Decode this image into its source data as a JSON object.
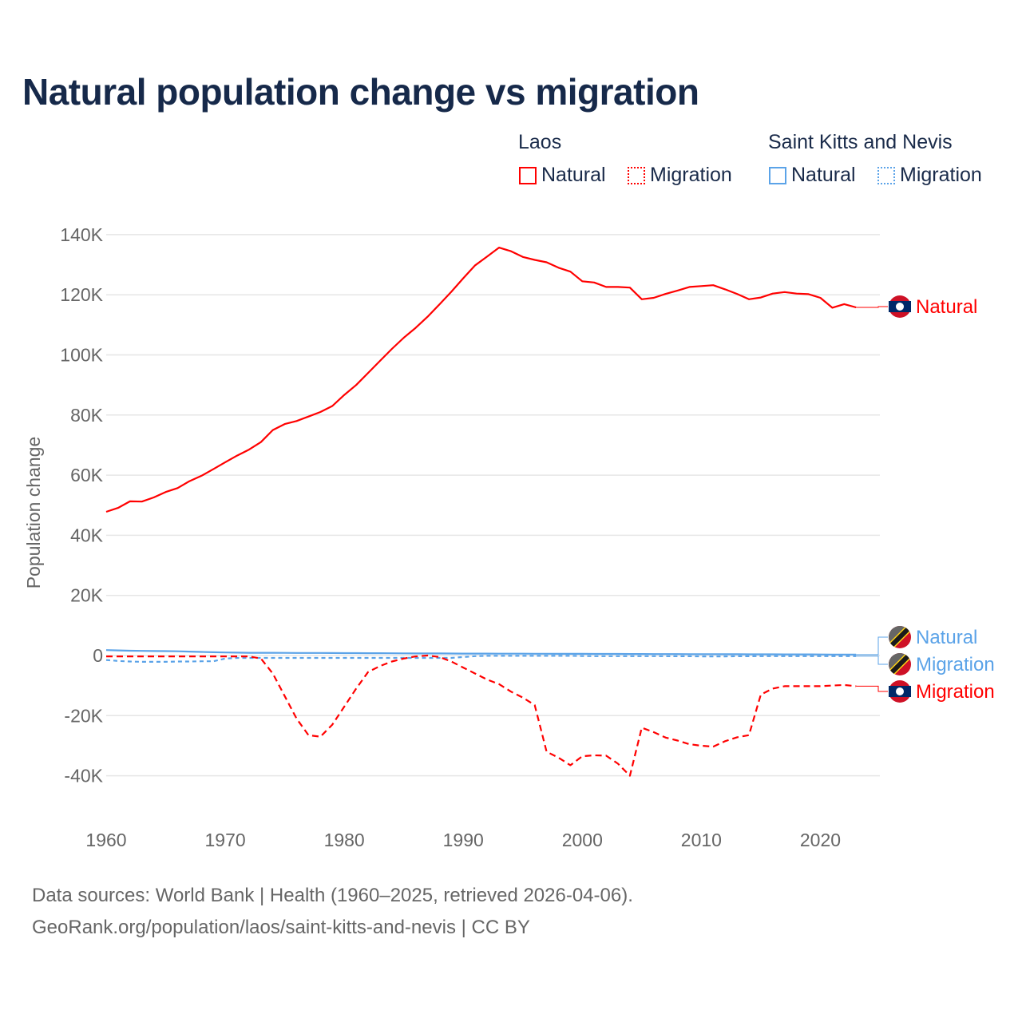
{
  "title": "Natural population change vs migration",
  "legend": {
    "groups": [
      {
        "name": "Laos",
        "color": "#ff0000",
        "items": [
          "Natural",
          "Migration"
        ]
      },
      {
        "name": "Saint Kitts and Nevis",
        "color": "#5ba3e8",
        "items": [
          "Natural",
          "Migration"
        ]
      }
    ]
  },
  "footer": {
    "line1": "Data sources: World Bank | Health (1960–2025, retrieved 2026-04-06).",
    "line2": "GeoRank.org/population/laos/saint-kitts-and-nevis | CC BY"
  },
  "chart_data": {
    "type": "line",
    "title": "Natural population change vs migration",
    "xlabel": "",
    "ylabel": "Population change",
    "xlim": [
      1960,
      2025
    ],
    "ylim": [
      -50000,
      140000
    ],
    "x_ticks": [
      "1960",
      "1970",
      "1980",
      "1990",
      "2000",
      "2010",
      "2020"
    ],
    "y_ticks": [
      "140K",
      "120K",
      "100K",
      "80K",
      "60K",
      "40K",
      "20K",
      "0",
      "-20K",
      "-40K"
    ],
    "grid": true,
    "x_start": 1960,
    "series": [
      {
        "name": "Laos Natural",
        "label": "Natural",
        "color": "#ff0000",
        "dash": "solid",
        "values": [
          47800,
          49100,
          51300,
          51200,
          52600,
          54400,
          55700,
          58000,
          59800,
          62000,
          64300,
          66500,
          68500,
          71000,
          75000,
          77000,
          78000,
          79500,
          81000,
          83000,
          86700,
          90000,
          94000,
          98000,
          102000,
          105700,
          109000,
          112700,
          116800,
          121000,
          125500,
          129800,
          132700,
          135700,
          134500,
          132600,
          131600,
          130800,
          129000,
          127700,
          124500,
          124100,
          122600,
          122600,
          122400,
          118500,
          119000,
          120300,
          121400,
          122600,
          122900,
          123200,
          121800,
          120300,
          118500,
          119100,
          120400,
          120900,
          120400,
          120200,
          119000,
          115700,
          116900,
          115800
        ]
      },
      {
        "name": "Laos Migration",
        "label": "Migration",
        "color": "#ff0000",
        "dash": "dashed",
        "values": [
          -300,
          -300,
          -300,
          -300,
          -300,
          -300,
          -300,
          -300,
          -300,
          -300,
          -300,
          -300,
          -300,
          -1000,
          -6000,
          -13500,
          -21000,
          -26500,
          -27000,
          -23000,
          -17000,
          -11000,
          -5500,
          -3500,
          -2000,
          -1000,
          -300,
          0,
          -500,
          -2000,
          -4000,
          -6000,
          -8000,
          -9500,
          -12000,
          -14000,
          -16500,
          -32000,
          -34000,
          -36500,
          -33500,
          -33200,
          -33300,
          -36000,
          -40000,
          -24000,
          -25500,
          -27300,
          -28300,
          -29500,
          -30000,
          -30300,
          -28500,
          -27200,
          -26500,
          -13000,
          -11000,
          -10200,
          -10200,
          -10200,
          -10200,
          -10000,
          -9800,
          -10200
        ]
      },
      {
        "name": "Saint Kitts and Nevis Natural",
        "label": "Natural",
        "color": "#5ba3e8",
        "dash": "solid",
        "values": [
          1800,
          1700,
          1600,
          1550,
          1500,
          1450,
          1400,
          1300,
          1200,
          1100,
          1000,
          950,
          900,
          900,
          900,
          880,
          860,
          850,
          840,
          820,
          800,
          800,
          780,
          760,
          740,
          720,
          700,
          690,
          680,
          670,
          650,
          640,
          630,
          620,
          610,
          600,
          590,
          580,
          570,
          560,
          550,
          540,
          530,
          520,
          510,
          500,
          490,
          480,
          470,
          460,
          450,
          440,
          430,
          420,
          410,
          400,
          390,
          380,
          370,
          360,
          350,
          330,
          320,
          310
        ]
      },
      {
        "name": "Saint Kitts and Nevis Migration",
        "label": "Migration",
        "color": "#5ba3e8",
        "dash": "dotted",
        "values": [
          -1500,
          -1800,
          -2000,
          -2100,
          -2100,
          -2100,
          -2000,
          -2000,
          -1900,
          -1900,
          -1000,
          -800,
          -800,
          -800,
          -800,
          -800,
          -800,
          -800,
          -800,
          -800,
          -800,
          -800,
          -800,
          -800,
          -800,
          -800,
          -800,
          -800,
          -800,
          -800,
          -500,
          -200,
          -100,
          -100,
          -100,
          -100,
          -100,
          -100,
          -100,
          -100,
          -150,
          -200,
          -200,
          -200,
          -200,
          -200,
          -200,
          -200,
          -250,
          -250,
          -300,
          -300,
          -300,
          -250,
          -250,
          -200,
          -200,
          -200,
          -200,
          -200,
          -200,
          -200,
          -200,
          -200
        ]
      }
    ]
  }
}
